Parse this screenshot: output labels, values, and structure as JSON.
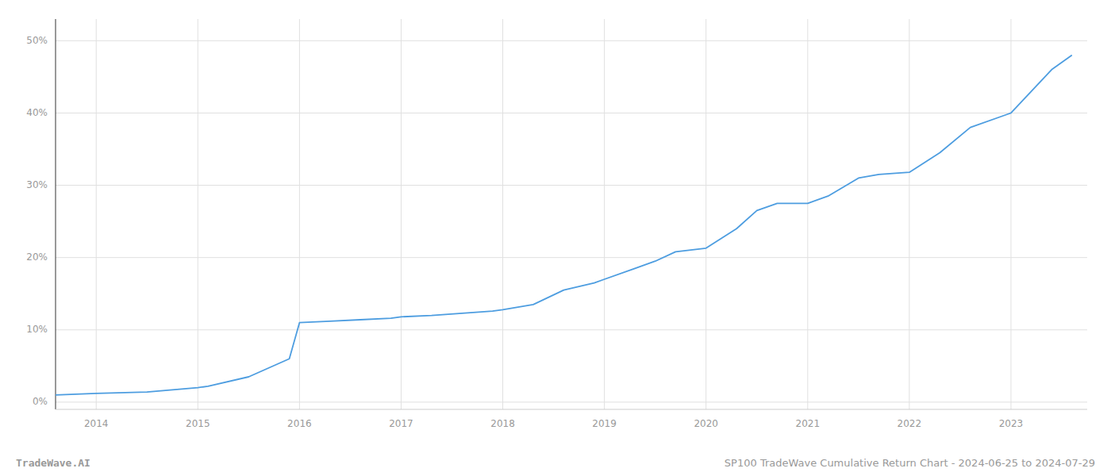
{
  "chart_data": {
    "type": "line",
    "x": [
      2013.6,
      2014.0,
      2014.5,
      2015.0,
      2015.1,
      2015.5,
      2015.9,
      2016.0,
      2016.3,
      2016.6,
      2016.9,
      2017.0,
      2017.3,
      2017.6,
      2017.9,
      2018.0,
      2018.3,
      2018.6,
      2018.9,
      2019.0,
      2019.3,
      2019.5,
      2019.7,
      2020.0,
      2020.3,
      2020.5,
      2020.7,
      2021.0,
      2021.2,
      2021.5,
      2021.7,
      2022.0,
      2022.3,
      2022.6,
      2022.9,
      2023.0,
      2023.2,
      2023.4,
      2023.6
    ],
    "values": [
      1.0,
      1.2,
      1.4,
      2.0,
      2.2,
      3.5,
      6.0,
      11.0,
      11.2,
      11.4,
      11.6,
      11.8,
      12.0,
      12.3,
      12.6,
      12.8,
      13.5,
      15.5,
      16.5,
      17.0,
      18.5,
      19.5,
      20.8,
      21.3,
      24.0,
      26.5,
      27.5,
      27.5,
      28.5,
      31.0,
      31.5,
      31.8,
      34.5,
      38.0,
      39.5,
      40.0,
      43.0,
      46.0,
      48.0
    ],
    "color": "#4d9de0",
    "xlim": [
      2013.6,
      2023.75
    ],
    "xticks": [
      2014,
      2015,
      2016,
      2017,
      2018,
      2019,
      2020,
      2021,
      2022,
      2023
    ],
    "ylim": [
      -1,
      53
    ],
    "yticks": [
      {
        "value": 0,
        "label": "0%"
      },
      {
        "value": 10,
        "label": "10%"
      },
      {
        "value": 20,
        "label": "20%"
      },
      {
        "value": 30,
        "label": "30%"
      },
      {
        "value": 40,
        "label": "40%"
      },
      {
        "value": 50,
        "label": "50%"
      }
    ],
    "grid": true,
    "annotations": [
      "TradeWave.AI",
      "SP100 TradeWave Cumulative Return Chart - 2024-06-25 to 2024-07-29"
    ]
  }
}
